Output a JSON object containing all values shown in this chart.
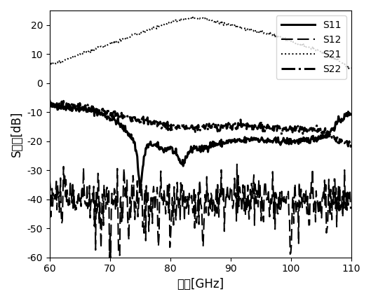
{
  "xlabel": "频率[GHz]",
  "ylabel": "S参数[dB]",
  "xlim": [
    60,
    110
  ],
  "ylim": [
    -60,
    25
  ],
  "xticks": [
    60,
    70,
    80,
    90,
    100,
    110
  ],
  "yticks": [
    -60,
    -50,
    -40,
    -30,
    -20,
    -10,
    0,
    10,
    20
  ],
  "legend": [
    "S11",
    "S12",
    "S21",
    "S22"
  ],
  "background_color": "#ffffff",
  "label_font_size": 12,
  "tick_font_size": 10,
  "legend_font_size": 10,
  "s11_xp": [
    60,
    62,
    64,
    66,
    68,
    70,
    71,
    72,
    73,
    74,
    74.5,
    75.0,
    75.5,
    76,
    77,
    78,
    79,
    80,
    81,
    82,
    83,
    84,
    85,
    86,
    87,
    88,
    90,
    92,
    94,
    96,
    98,
    100,
    102,
    104,
    106,
    108,
    110
  ],
  "s11_yp": [
    -8,
    -8,
    -8.5,
    -9,
    -10,
    -12,
    -13,
    -15,
    -17,
    -20,
    -25,
    -37,
    -28,
    -22,
    -21,
    -22,
    -23,
    -22,
    -25,
    -28,
    -24,
    -22,
    -23,
    -22,
    -21,
    -21,
    -20,
    -20,
    -19,
    -20,
    -20,
    -20,
    -20,
    -19,
    -18,
    -13,
    -10
  ],
  "s22_xp": [
    60,
    62,
    64,
    66,
    68,
    70,
    72,
    74,
    76,
    78,
    80,
    82,
    84,
    86,
    88,
    90,
    92,
    94,
    96,
    98,
    100,
    102,
    104,
    106,
    108,
    110
  ],
  "s22_yp": [
    -7,
    -7.5,
    -8,
    -8.5,
    -9.5,
    -10.5,
    -11.5,
    -12,
    -13,
    -14,
    -15,
    -15,
    -15.5,
    -15,
    -15,
    -15,
    -14.5,
    -15,
    -15,
    -15.5,
    -16,
    -15.5,
    -16,
    -17,
    -20,
    -21
  ],
  "s21_xp": [
    60,
    62,
    64,
    66,
    68,
    70,
    72,
    74,
    76,
    78,
    80,
    82,
    84,
    86,
    88,
    90,
    92,
    94,
    96,
    98,
    100,
    102,
    104,
    106,
    108,
    110
  ],
  "s21_yp": [
    6.5,
    7.5,
    9,
    10.5,
    12,
    13.5,
    15,
    16.5,
    18,
    19.5,
    21,
    22,
    22.5,
    22,
    21,
    20,
    19,
    18,
    17,
    16,
    14.5,
    13,
    11.5,
    10,
    7.5,
    5
  ],
  "s12_base_xp": [
    60,
    65,
    70,
    75,
    80,
    85,
    90,
    95,
    100,
    105,
    110
  ],
  "s12_base_yp": [
    -39,
    -40,
    -40,
    -41,
    -40,
    -41,
    -40,
    -40,
    -41,
    -40,
    -40
  ]
}
